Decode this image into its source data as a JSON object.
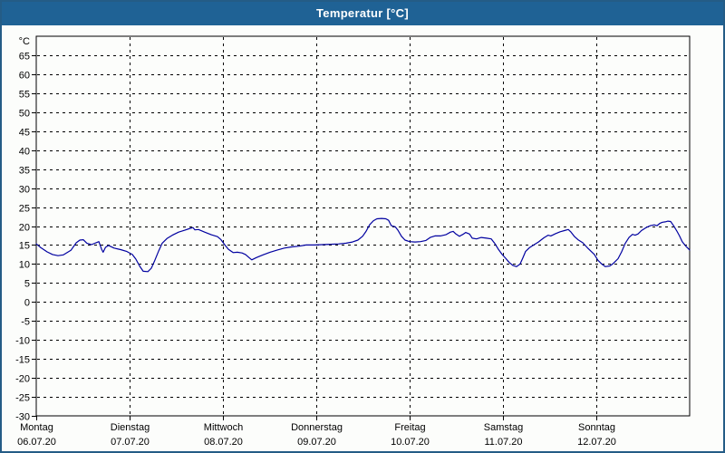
{
  "window": {
    "title": "Temperatur [°C]"
  },
  "colors": {
    "titlebar": "#1f6295",
    "border": "#245c86",
    "background": "#fcfdfb",
    "grid": "#000000",
    "line": "#0000a0",
    "title_text": "#ffffff",
    "label_text": "#000000"
  },
  "chart_data": {
    "type": "line",
    "title": "Temperatur [°C]",
    "y_unit_label": "°C",
    "ylim": [
      -30,
      70
    ],
    "y_tick_step": 5,
    "y_tick_labels": [
      "65",
      "60",
      "55",
      "50",
      "45",
      "40",
      "35",
      "30",
      "25",
      "20",
      "15",
      "10",
      "5",
      "0",
      "-5",
      "-10",
      "-15",
      "-20",
      "-25",
      "-30"
    ],
    "grid": "dashed",
    "x_hours_total": 168,
    "x_days": [
      {
        "name": "Montag",
        "date": "06.07.20"
      },
      {
        "name": "Dienstag",
        "date": "07.07.20"
      },
      {
        "name": "Mittwoch",
        "date": "08.07.20"
      },
      {
        "name": "Donnerstag",
        "date": "09.07.20"
      },
      {
        "name": "Freitag",
        "date": "10.07.20"
      },
      {
        "name": "Samstag",
        "date": "11.07.20"
      },
      {
        "name": "Sonntag",
        "date": "12.07.20"
      }
    ],
    "series": [
      {
        "name": "Temperatur",
        "unit": "°C",
        "color": "#0000a0",
        "points": [
          [
            0,
            15.3
          ],
          [
            1.2,
            14.3
          ],
          [
            2.8,
            13.2
          ],
          [
            4.2,
            12.5
          ],
          [
            5.6,
            12.2
          ],
          [
            7,
            12.4
          ],
          [
            8.9,
            13.6
          ],
          [
            10.3,
            15.6
          ],
          [
            11.2,
            16.3
          ],
          [
            12.1,
            16.4
          ],
          [
            13,
            15.5
          ],
          [
            14.2,
            15.1
          ],
          [
            15.4,
            15.6
          ],
          [
            16.1,
            15.9
          ],
          [
            16.8,
            13.9
          ],
          [
            17.2,
            13.1
          ],
          [
            17.8,
            14.4
          ],
          [
            18.6,
            14.9
          ],
          [
            20,
            14.2
          ],
          [
            21.7,
            13.8
          ],
          [
            23.3,
            13.3
          ],
          [
            24.7,
            12.5
          ],
          [
            25.6,
            11.3
          ],
          [
            26.6,
            9.4
          ],
          [
            27.5,
            8.1
          ],
          [
            28.7,
            8
          ],
          [
            29.6,
            8.9
          ],
          [
            30.5,
            11
          ],
          [
            31.5,
            13.5
          ],
          [
            32.4,
            15.5
          ],
          [
            33.6,
            16.7
          ],
          [
            35,
            17.6
          ],
          [
            36.6,
            18.4
          ],
          [
            38.2,
            18.9
          ],
          [
            39.6,
            19.4
          ],
          [
            40.3,
            19.6
          ],
          [
            40.8,
            19
          ],
          [
            41.7,
            19.1
          ],
          [
            43.3,
            18.4
          ],
          [
            45,
            17.7
          ],
          [
            46.6,
            17.2
          ],
          [
            47.5,
            16.4
          ],
          [
            48.5,
            15
          ],
          [
            49.4,
            13.9
          ],
          [
            50.6,
            13
          ],
          [
            51.7,
            13.1
          ],
          [
            52.9,
            12.9
          ],
          [
            53.8,
            12.5
          ],
          [
            54.7,
            11.7
          ],
          [
            55.4,
            11.1
          ],
          [
            56.6,
            11.7
          ],
          [
            58.3,
            12.4
          ],
          [
            60.1,
            13.1
          ],
          [
            62,
            13.7
          ],
          [
            63.8,
            14.2
          ],
          [
            65.7,
            14.5
          ],
          [
            67.6,
            14.7
          ],
          [
            69.4,
            15
          ],
          [
            71.5,
            15
          ],
          [
            73.6,
            15.1
          ],
          [
            75.7,
            15.2
          ],
          [
            77.8,
            15.3
          ],
          [
            79.7,
            15.5
          ],
          [
            81.3,
            15.8
          ],
          [
            82.7,
            16.3
          ],
          [
            83.9,
            17.3
          ],
          [
            84.8,
            18.6
          ],
          [
            85.7,
            20.3
          ],
          [
            86.7,
            21.4
          ],
          [
            87.6,
            21.9
          ],
          [
            88.8,
            22
          ],
          [
            89.9,
            21.9
          ],
          [
            90.6,
            21.5
          ],
          [
            91.3,
            20.1
          ],
          [
            92.3,
            19.8
          ],
          [
            93,
            18.9
          ],
          [
            93.9,
            17.3
          ],
          [
            94.8,
            16.3
          ],
          [
            96,
            15.9
          ],
          [
            97.4,
            15.8
          ],
          [
            98.8,
            15.9
          ],
          [
            100.2,
            16.2
          ],
          [
            101.3,
            17
          ],
          [
            102.5,
            17.4
          ],
          [
            103.9,
            17.4
          ],
          [
            105.3,
            17.7
          ],
          [
            106.5,
            18.4
          ],
          [
            107.2,
            18.6
          ],
          [
            107.9,
            17.9
          ],
          [
            108.8,
            17.3
          ],
          [
            109.7,
            17.8
          ],
          [
            110.4,
            18.3
          ],
          [
            111.4,
            17.9
          ],
          [
            112.1,
            16.8
          ],
          [
            113.2,
            16.6
          ],
          [
            114.4,
            17
          ],
          [
            115.8,
            16.8
          ],
          [
            117,
            16.6
          ],
          [
            117.9,
            15.4
          ],
          [
            118.8,
            13.9
          ],
          [
            119.8,
            12.5
          ],
          [
            120.7,
            11.5
          ],
          [
            121.6,
            10.4
          ],
          [
            122.6,
            9.6
          ],
          [
            123.5,
            9.3
          ],
          [
            124.4,
            10
          ],
          [
            125.1,
            11.6
          ],
          [
            125.8,
            13.3
          ],
          [
            126.8,
            14.3
          ],
          [
            127.9,
            15
          ],
          [
            129.1,
            15.8
          ],
          [
            130.5,
            16.9
          ],
          [
            131.6,
            17.6
          ],
          [
            132.3,
            17.4
          ],
          [
            133.5,
            18
          ],
          [
            134.7,
            18.5
          ],
          [
            135.8,
            18.8
          ],
          [
            136.8,
            19.1
          ],
          [
            137.5,
            18.4
          ],
          [
            138.4,
            17.2
          ],
          [
            139.3,
            16.4
          ],
          [
            140.5,
            15.6
          ],
          [
            141.7,
            14.3
          ],
          [
            142.6,
            13.4
          ],
          [
            143.5,
            12.5
          ],
          [
            144.4,
            11
          ],
          [
            145.4,
            10
          ],
          [
            146.3,
            9.3
          ],
          [
            147.5,
            9.5
          ],
          [
            148.4,
            10.2
          ],
          [
            149.6,
            11.4
          ],
          [
            150.5,
            13.2
          ],
          [
            151.4,
            15.4
          ],
          [
            152.4,
            17
          ],
          [
            153.3,
            17.8
          ],
          [
            154,
            17.6
          ],
          [
            154.7,
            17.9
          ],
          [
            155.6,
            18.8
          ],
          [
            156.8,
            19.6
          ],
          [
            157.9,
            20.1
          ],
          [
            158.9,
            20.3
          ],
          [
            159.6,
            20.1
          ],
          [
            160.3,
            20.7
          ],
          [
            161,
            21
          ],
          [
            161.7,
            21.1
          ],
          [
            162.4,
            21.3
          ],
          [
            163.1,
            21.2
          ],
          [
            163.8,
            20.2
          ],
          [
            164.7,
            18.7
          ],
          [
            165.4,
            17.4
          ],
          [
            166.1,
            15.9
          ],
          [
            167.1,
            14.6
          ],
          [
            168,
            13.7
          ]
        ]
      }
    ]
  }
}
